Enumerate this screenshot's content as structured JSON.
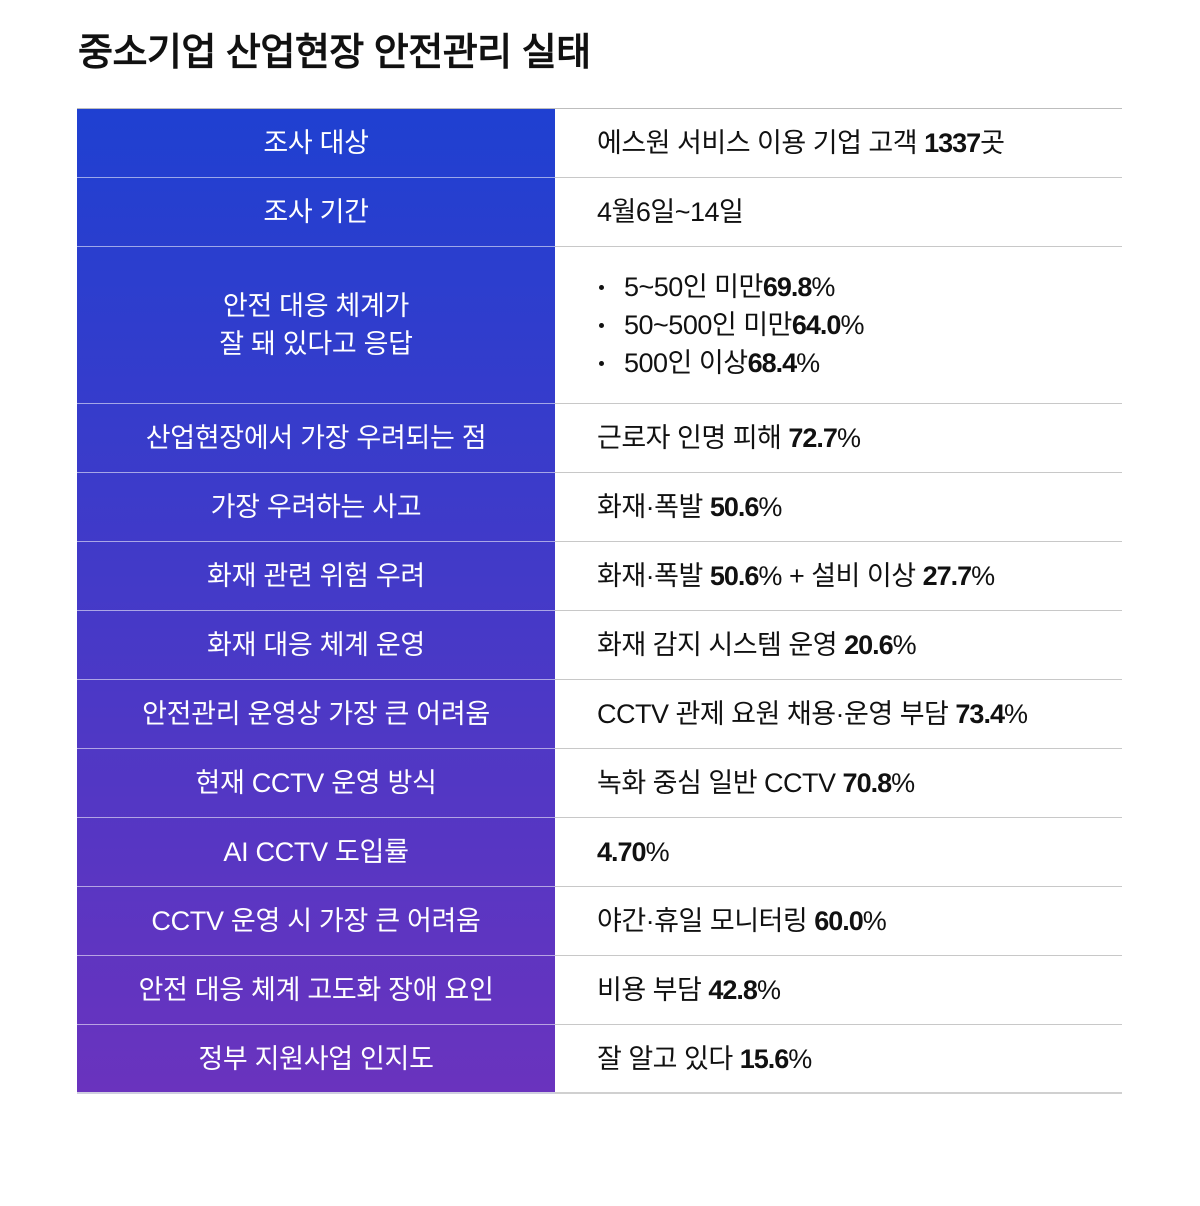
{
  "title": "중소기업 산업현장 안전관리 실태",
  "colors": {
    "label_gradient_top": "#1f40d1",
    "label_gradient_bottom": "#6a33be",
    "label_text": "#ffffff",
    "value_text": "#111111",
    "divider": "#c8c8c8"
  },
  "rows": [
    {
      "label": "조사 대상",
      "value": {
        "text": "에스원 서비스 이용 기업 고객 ",
        "num": "1337",
        "suffix": "곳"
      }
    },
    {
      "label": "조사 기간",
      "value": {
        "text": "4월6일~14일"
      }
    },
    {
      "label": "안전 대응 체계가\n잘 돼 있다고 응답",
      "bullets": [
        {
          "text": "5~50인 미만 ",
          "num": "69.8",
          "pct": "%"
        },
        {
          "text": "50~500인 미만 ",
          "num": "64.0",
          "pct": "%"
        },
        {
          "text": "500인 이상 ",
          "num": "68.4",
          "pct": "%"
        }
      ]
    },
    {
      "label": "산업현장에서 가장 우려되는 점",
      "value": {
        "text": "근로자 인명 피해 ",
        "num": "72.7",
        "pct": "%"
      }
    },
    {
      "label": "가장 우려하는 사고",
      "value": {
        "text": "화재·폭발 ",
        "num": "50.6",
        "pct": "%"
      }
    },
    {
      "label": "화재 관련 위험 우려",
      "value": {
        "text": "화재·폭발 ",
        "num": "50.6",
        "pct": "%",
        "text2": " + 설비 이상 ",
        "num2": "27.7",
        "pct2": "%"
      }
    },
    {
      "label": "화재 대응 체계 운영",
      "value": {
        "text": "화재 감지 시스템 운영 ",
        "num": "20.6",
        "pct": "%"
      }
    },
    {
      "label": "안전관리 운영상 가장 큰 어려움",
      "value": {
        "text": "CCTV 관제 요원 채용·운영 부담 ",
        "num": "73.4",
        "pct": "%"
      }
    },
    {
      "label": "현재 CCTV 운영 방식",
      "value": {
        "text": "녹화 중심 일반 CCTV ",
        "num": "70.8",
        "pct": "%"
      }
    },
    {
      "label": "AI CCTV 도입률",
      "value": {
        "text": "",
        "num": "4.70",
        "pct": "%"
      }
    },
    {
      "label": "CCTV 운영 시 가장 큰 어려움",
      "value": {
        "text": "야간·휴일 모니터링 ",
        "num": "60.0",
        "pct": "%"
      }
    },
    {
      "label": "안전 대응 체계 고도화 장애 요인",
      "value": {
        "text": "비용 부담 ",
        "num": "42.8",
        "pct": "%"
      }
    },
    {
      "label": "정부 지원사업 인지도",
      "value": {
        "text": "잘 알고 있다 ",
        "num": "15.6",
        "pct": "%"
      }
    }
  ]
}
